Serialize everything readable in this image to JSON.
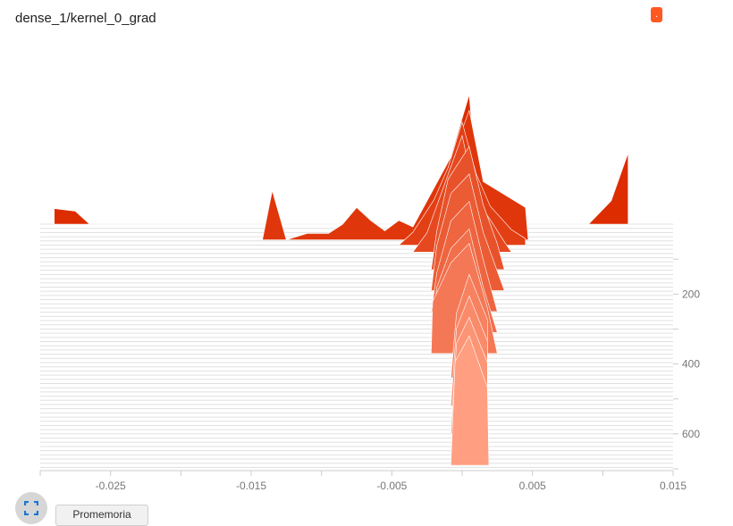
{
  "title": "dense_1/kernel_0_grad",
  "run_chip": ".",
  "buttons": {
    "mode_label": "Promemoria"
  },
  "icons": {
    "expand": "fullscreen-icon"
  },
  "colors": {
    "dark": "#dd2c00",
    "light": "#ff9e80",
    "chip": "#ff5722",
    "grid": "#e0e0e0"
  },
  "chart_data": {
    "type": "area",
    "title": "",
    "xlabel": "",
    "ylabel": "",
    "x_ticks": [
      -0.025,
      -0.015,
      -0.005,
      0.005,
      0.015
    ],
    "x_tick_labels": [
      "-0.025",
      "-0.015",
      "-0.005",
      "0.005",
      "0.015"
    ],
    "xlim": [
      -0.03,
      0.015
    ],
    "y_ticks": [
      200,
      400,
      600
    ],
    "y_tick_labels": [
      "200",
      "400",
      "600"
    ],
    "ylim": [
      0,
      700
    ],
    "series": [
      {
        "step": 0,
        "points": [
          [
            -0.029,
            0
          ],
          [
            -0.029,
            0.12
          ],
          [
            -0.0275,
            0.1
          ],
          [
            -0.0265,
            0
          ],
          [
            -0.02,
            0
          ],
          [
            -0.0118,
            0
          ],
          [
            -0.0105,
            0
          ],
          [
            -0.0016,
            0
          ],
          [
            -0.001,
            0.45
          ],
          [
            0.0005,
            1
          ],
          [
            0.001,
            0.35
          ],
          [
            0.003,
            0
          ],
          [
            0.009,
            0
          ],
          [
            0.0106,
            0.18
          ],
          [
            0.0118,
            0.55
          ],
          [
            0.0118,
            0
          ]
        ]
      },
      {
        "step": 45,
        "points": [
          [
            -0.0148,
            0
          ],
          [
            -0.0142,
            0
          ],
          [
            -0.0135,
            0.38
          ],
          [
            -0.0125,
            0
          ],
          [
            -0.011,
            0.05
          ],
          [
            -0.0095,
            0.05
          ],
          [
            -0.0085,
            0.12
          ],
          [
            -0.0075,
            0.25
          ],
          [
            -0.0065,
            0.15
          ],
          [
            -0.0055,
            0.07
          ],
          [
            -0.0045,
            0.15
          ],
          [
            -0.0035,
            0.1
          ],
          [
            -0.0025,
            0.3
          ],
          [
            -0.0015,
            0.5
          ],
          [
            -0.0005,
            0.7
          ],
          [
            0.0005,
            1
          ],
          [
            0.0015,
            0.45
          ],
          [
            0.003,
            0.35
          ],
          [
            0.0045,
            0.25
          ],
          [
            0.0047,
            0
          ]
        ]
      },
      {
        "step": 60,
        "points": [
          [
            -0.0045,
            0
          ],
          [
            -0.0035,
            0.1
          ],
          [
            -0.002,
            0.35
          ],
          [
            -0.001,
            0.6
          ],
          [
            0,
            0.95
          ],
          [
            0.001,
            0.55
          ],
          [
            0.002,
            0.3
          ],
          [
            0.0035,
            0.12
          ],
          [
            0.0045,
            0.05
          ],
          [
            0.0045,
            0
          ]
        ]
      },
      {
        "step": 80,
        "points": [
          [
            -0.0035,
            0
          ],
          [
            -0.0025,
            0.15
          ],
          [
            -0.0015,
            0.45
          ],
          [
            0,
            0.9
          ],
          [
            0.001,
            0.4
          ],
          [
            0.002,
            0.25
          ],
          [
            0.003,
            0.08
          ],
          [
            0.0035,
            0
          ]
        ]
      },
      {
        "step": 130,
        "points": [
          [
            -0.0022,
            0
          ],
          [
            -0.0018,
            0.3
          ],
          [
            -0.001,
            0.7
          ],
          [
            0.0005,
            0.95
          ],
          [
            0.0015,
            0.5
          ],
          [
            0.0025,
            0.2
          ],
          [
            0.003,
            0
          ]
        ]
      },
      {
        "step": 190,
        "points": [
          [
            -0.0022,
            0
          ],
          [
            -0.0018,
            0.35
          ],
          [
            -0.0008,
            0.75
          ],
          [
            0.0005,
            0.9
          ],
          [
            0.0015,
            0.45
          ],
          [
            0.0025,
            0.15
          ],
          [
            0.003,
            0
          ]
        ]
      },
      {
        "step": 250,
        "points": [
          [
            -0.0022,
            0
          ],
          [
            -0.0018,
            0.3
          ],
          [
            -0.0008,
            0.7
          ],
          [
            0.0005,
            0.85
          ],
          [
            0.0015,
            0.4
          ],
          [
            0.0025,
            0
          ]
        ]
      },
      {
        "step": 310,
        "points": [
          [
            -0.0022,
            0
          ],
          [
            -0.0018,
            0.35
          ],
          [
            -0.0008,
            0.65
          ],
          [
            0.0005,
            0.8
          ],
          [
            0.0015,
            0.35
          ],
          [
            0.0025,
            0
          ]
        ]
      },
      {
        "step": 370,
        "points": [
          [
            -0.0022,
            0
          ],
          [
            -0.0021,
            0.4
          ],
          [
            -0.0008,
            0.7
          ],
          [
            0.0005,
            0.85
          ],
          [
            0.0018,
            0.35
          ],
          [
            0.0025,
            0
          ]
        ]
      },
      {
        "step": 440,
        "points": [
          [
            -0.0008,
            0
          ],
          [
            -0.0004,
            0.5
          ],
          [
            0.0005,
            0.8
          ],
          [
            0.0018,
            0.45
          ],
          [
            0.0018,
            0
          ]
        ]
      },
      {
        "step": 520,
        "points": [
          [
            -0.0008,
            0
          ],
          [
            -0.0004,
            0.6
          ],
          [
            0.0005,
            0.85
          ],
          [
            0.0018,
            0.5
          ],
          [
            0.0018,
            0
          ]
        ]
      },
      {
        "step": 600,
        "points": [
          [
            -0.0008,
            0
          ],
          [
            -0.0004,
            0.7
          ],
          [
            0.0005,
            0.9
          ],
          [
            0.0018,
            0.55
          ],
          [
            0.0018,
            0
          ]
        ]
      },
      {
        "step": 690,
        "points": [
          [
            -0.0008,
            0
          ],
          [
            -0.0005,
            0.8
          ],
          [
            0.0005,
            1
          ],
          [
            0.0018,
            0.6
          ],
          [
            0.0019,
            0
          ]
        ]
      }
    ],
    "grid": true,
    "legend": "none"
  }
}
